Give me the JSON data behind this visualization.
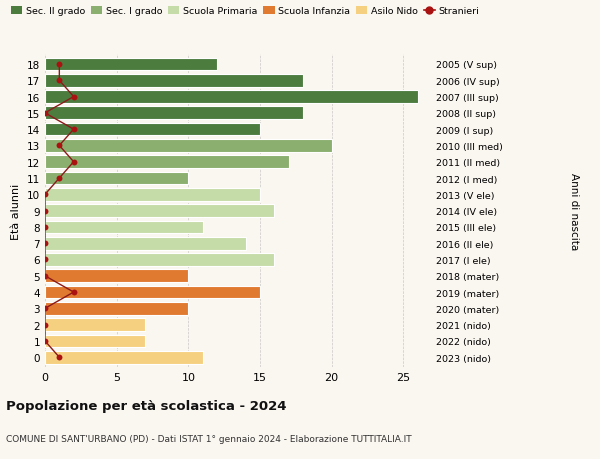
{
  "ages": [
    18,
    17,
    16,
    15,
    14,
    13,
    12,
    11,
    10,
    9,
    8,
    7,
    6,
    5,
    4,
    3,
    2,
    1,
    0
  ],
  "bar_values": [
    12,
    18,
    26,
    18,
    15,
    20,
    17,
    10,
    15,
    16,
    11,
    14,
    16,
    10,
    15,
    10,
    7,
    7,
    11
  ],
  "bar_colors": [
    "#4d7c3f",
    "#4d7c3f",
    "#4d7c3f",
    "#4d7c3f",
    "#4d7c3f",
    "#8aaf6e",
    "#8aaf6e",
    "#8aaf6e",
    "#c5dba8",
    "#c5dba8",
    "#c5dba8",
    "#c5dba8",
    "#c5dba8",
    "#e07a30",
    "#e07a30",
    "#e07a30",
    "#f5d080",
    "#f5d080",
    "#f5d080"
  ],
  "stranieri_x_values": [
    1,
    1,
    2,
    0,
    2,
    1,
    2,
    1,
    0,
    0,
    0,
    0,
    0,
    0,
    2,
    0,
    0,
    0,
    1
  ],
  "right_labels": [
    "2005 (V sup)",
    "2006 (IV sup)",
    "2007 (III sup)",
    "2008 (II sup)",
    "2009 (I sup)",
    "2010 (III med)",
    "2011 (II med)",
    "2012 (I med)",
    "2013 (V ele)",
    "2014 (IV ele)",
    "2015 (III ele)",
    "2016 (II ele)",
    "2017 (I ele)",
    "2018 (mater)",
    "2019 (mater)",
    "2020 (mater)",
    "2021 (nido)",
    "2022 (nido)",
    "2023 (nido)"
  ],
  "legend_labels": [
    "Sec. II grado",
    "Sec. I grado",
    "Scuola Primaria",
    "Scuola Infanzia",
    "Asilo Nido",
    "Stranieri"
  ],
  "legend_colors": [
    "#4d7c3f",
    "#8aaf6e",
    "#c5dba8",
    "#e07a30",
    "#f5d080",
    "#aa1111"
  ],
  "ylabel_left": "Età alunni",
  "ylabel_right": "Anni di nascita",
  "title": "Popolazione per età scolastica - 2024",
  "subtitle": "COMUNE DI SANT'URBANO (PD) - Dati ISTAT 1° gennaio 2024 - Elaborazione TUTTITALIA.IT",
  "xlim": [
    0,
    27
  ],
  "xticks": [
    0,
    5,
    10,
    15,
    20,
    25
  ],
  "background_color": "#faf6f0"
}
